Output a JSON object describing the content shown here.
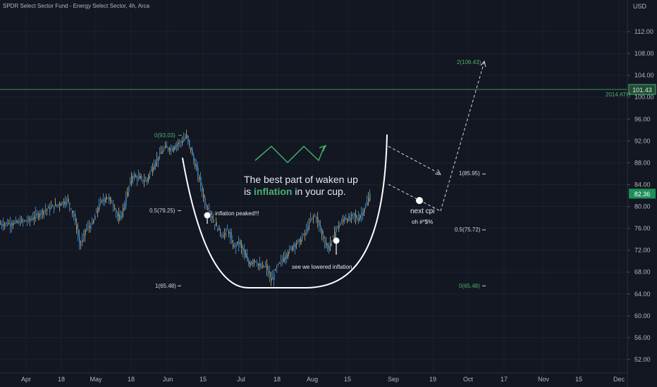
{
  "chart_data": {
    "type": "candlestick",
    "title": "SPDR Select Sector Fund - Energy Select Sector, 4h, Arca",
    "currency": "USD",
    "ylim": [
      49.5,
      117.5
    ],
    "y_ticks": [
      52.0,
      56.0,
      60.0,
      64.0,
      68.0,
      72.0,
      76.0,
      80.0,
      84.0,
      88.0,
      92.0,
      96.0,
      100.0,
      104.0,
      108.0,
      112.0
    ],
    "x_ticks": [
      {
        "label": "Apr",
        "x": 37
      },
      {
        "label": "18",
        "x": 87
      },
      {
        "label": "May",
        "x": 136
      },
      {
        "label": "18",
        "x": 186
      },
      {
        "label": "Jun",
        "x": 238
      },
      {
        "label": "15",
        "x": 288
      },
      {
        "label": "Jul",
        "x": 342
      },
      {
        "label": "18",
        "x": 393
      },
      {
        "label": "Aug",
        "x": 443
      },
      {
        "label": "15",
        "x": 493
      },
      {
        "label": "Sep",
        "x": 558
      },
      {
        "label": "19",
        "x": 614
      },
      {
        "label": "Oct",
        "x": 664
      },
      {
        "label": "17",
        "x": 715
      },
      {
        "label": "Nov",
        "x": 771
      },
      {
        "label": "15",
        "x": 821
      },
      {
        "label": "Dec",
        "x": 878
      }
    ],
    "price_path": [
      [
        0,
        76.8
      ],
      [
        20,
        77.0
      ],
      [
        40,
        77.5
      ],
      [
        60,
        79.2
      ],
      [
        80,
        80.3
      ],
      [
        95,
        81.2
      ],
      [
        105,
        77.8
      ],
      [
        113,
        72.6
      ],
      [
        120,
        75.8
      ],
      [
        130,
        76.8
      ],
      [
        140,
        80.5
      ],
      [
        150,
        81.8
      ],
      [
        160,
        80.3
      ],
      [
        168,
        77.4
      ],
      [
        176,
        80.6
      ],
      [
        186,
        85.6
      ],
      [
        196,
        85.2
      ],
      [
        206,
        84.6
      ],
      [
        215,
        87.1
      ],
      [
        225,
        89.4
      ],
      [
        233,
        90.8
      ],
      [
        243,
        90.6
      ],
      [
        252,
        91.7
      ],
      [
        258,
        92.0
      ],
      [
        263,
        93.03
      ],
      [
        270,
        90.3
      ],
      [
        276,
        87.4
      ],
      [
        283,
        84.5
      ],
      [
        290,
        80.4
      ],
      [
        296,
        79.3
      ],
      [
        302,
        77.1
      ],
      [
        308,
        76.0
      ],
      [
        315,
        74.6
      ],
      [
        322,
        75.8
      ],
      [
        330,
        72.6
      ],
      [
        338,
        73.5
      ],
      [
        346,
        71.2
      ],
      [
        352,
        69.5
      ],
      [
        360,
        70.3
      ],
      [
        368,
        68.8
      ],
      [
        376,
        69.1
      ],
      [
        384,
        66.4
      ],
      [
        392,
        69.0
      ],
      [
        400,
        70.4
      ],
      [
        408,
        71.7
      ],
      [
        416,
        73.1
      ],
      [
        424,
        73.6
      ],
      [
        432,
        75.2
      ],
      [
        440,
        77.7
      ],
      [
        446,
        78.4
      ],
      [
        452,
        76.5
      ],
      [
        458,
        74.1
      ],
      [
        464,
        72.3
      ],
      [
        470,
        73.8
      ],
      [
        476,
        76.1
      ],
      [
        482,
        76.8
      ],
      [
        488,
        78.0
      ],
      [
        494,
        77.5
      ],
      [
        500,
        78.6
      ],
      [
        506,
        77.6
      ],
      [
        512,
        78.8
      ],
      [
        518,
        80.0
      ],
      [
        524,
        82.36
      ]
    ],
    "current_price": {
      "label": "82.36",
      "value": 82.36
    },
    "horizontal_line": {
      "label": "2014 ATH",
      "value": 101.43,
      "price_label": "101.43"
    },
    "fib_left": [
      {
        "label": "0(93.03)",
        "value": 93.03
      },
      {
        "label": "0.5(79.25)",
        "value": 79.25
      },
      {
        "label": "1(65.48)",
        "value": 65.48
      }
    ],
    "fib_right": [
      {
        "label": "2(106.43)",
        "value": 106.43
      },
      {
        "label": "1(85.95)",
        "value": 85.95
      },
      {
        "label": "0.5(75.72)",
        "value": 75.72
      },
      {
        "label": "0(65.48)",
        "value": 65.48
      }
    ],
    "annotations": {
      "headline_1": "The best part of waken up",
      "headline_2_pre": "is ",
      "headline_2_emph": "inflation",
      "headline_2_post": " in your cup.",
      "inflation_peaked": "inflation peaked!!!",
      "lowered": "see we lowered inflation",
      "next_cpi": "next cpi",
      "oh": "oh #*$%"
    }
  }
}
